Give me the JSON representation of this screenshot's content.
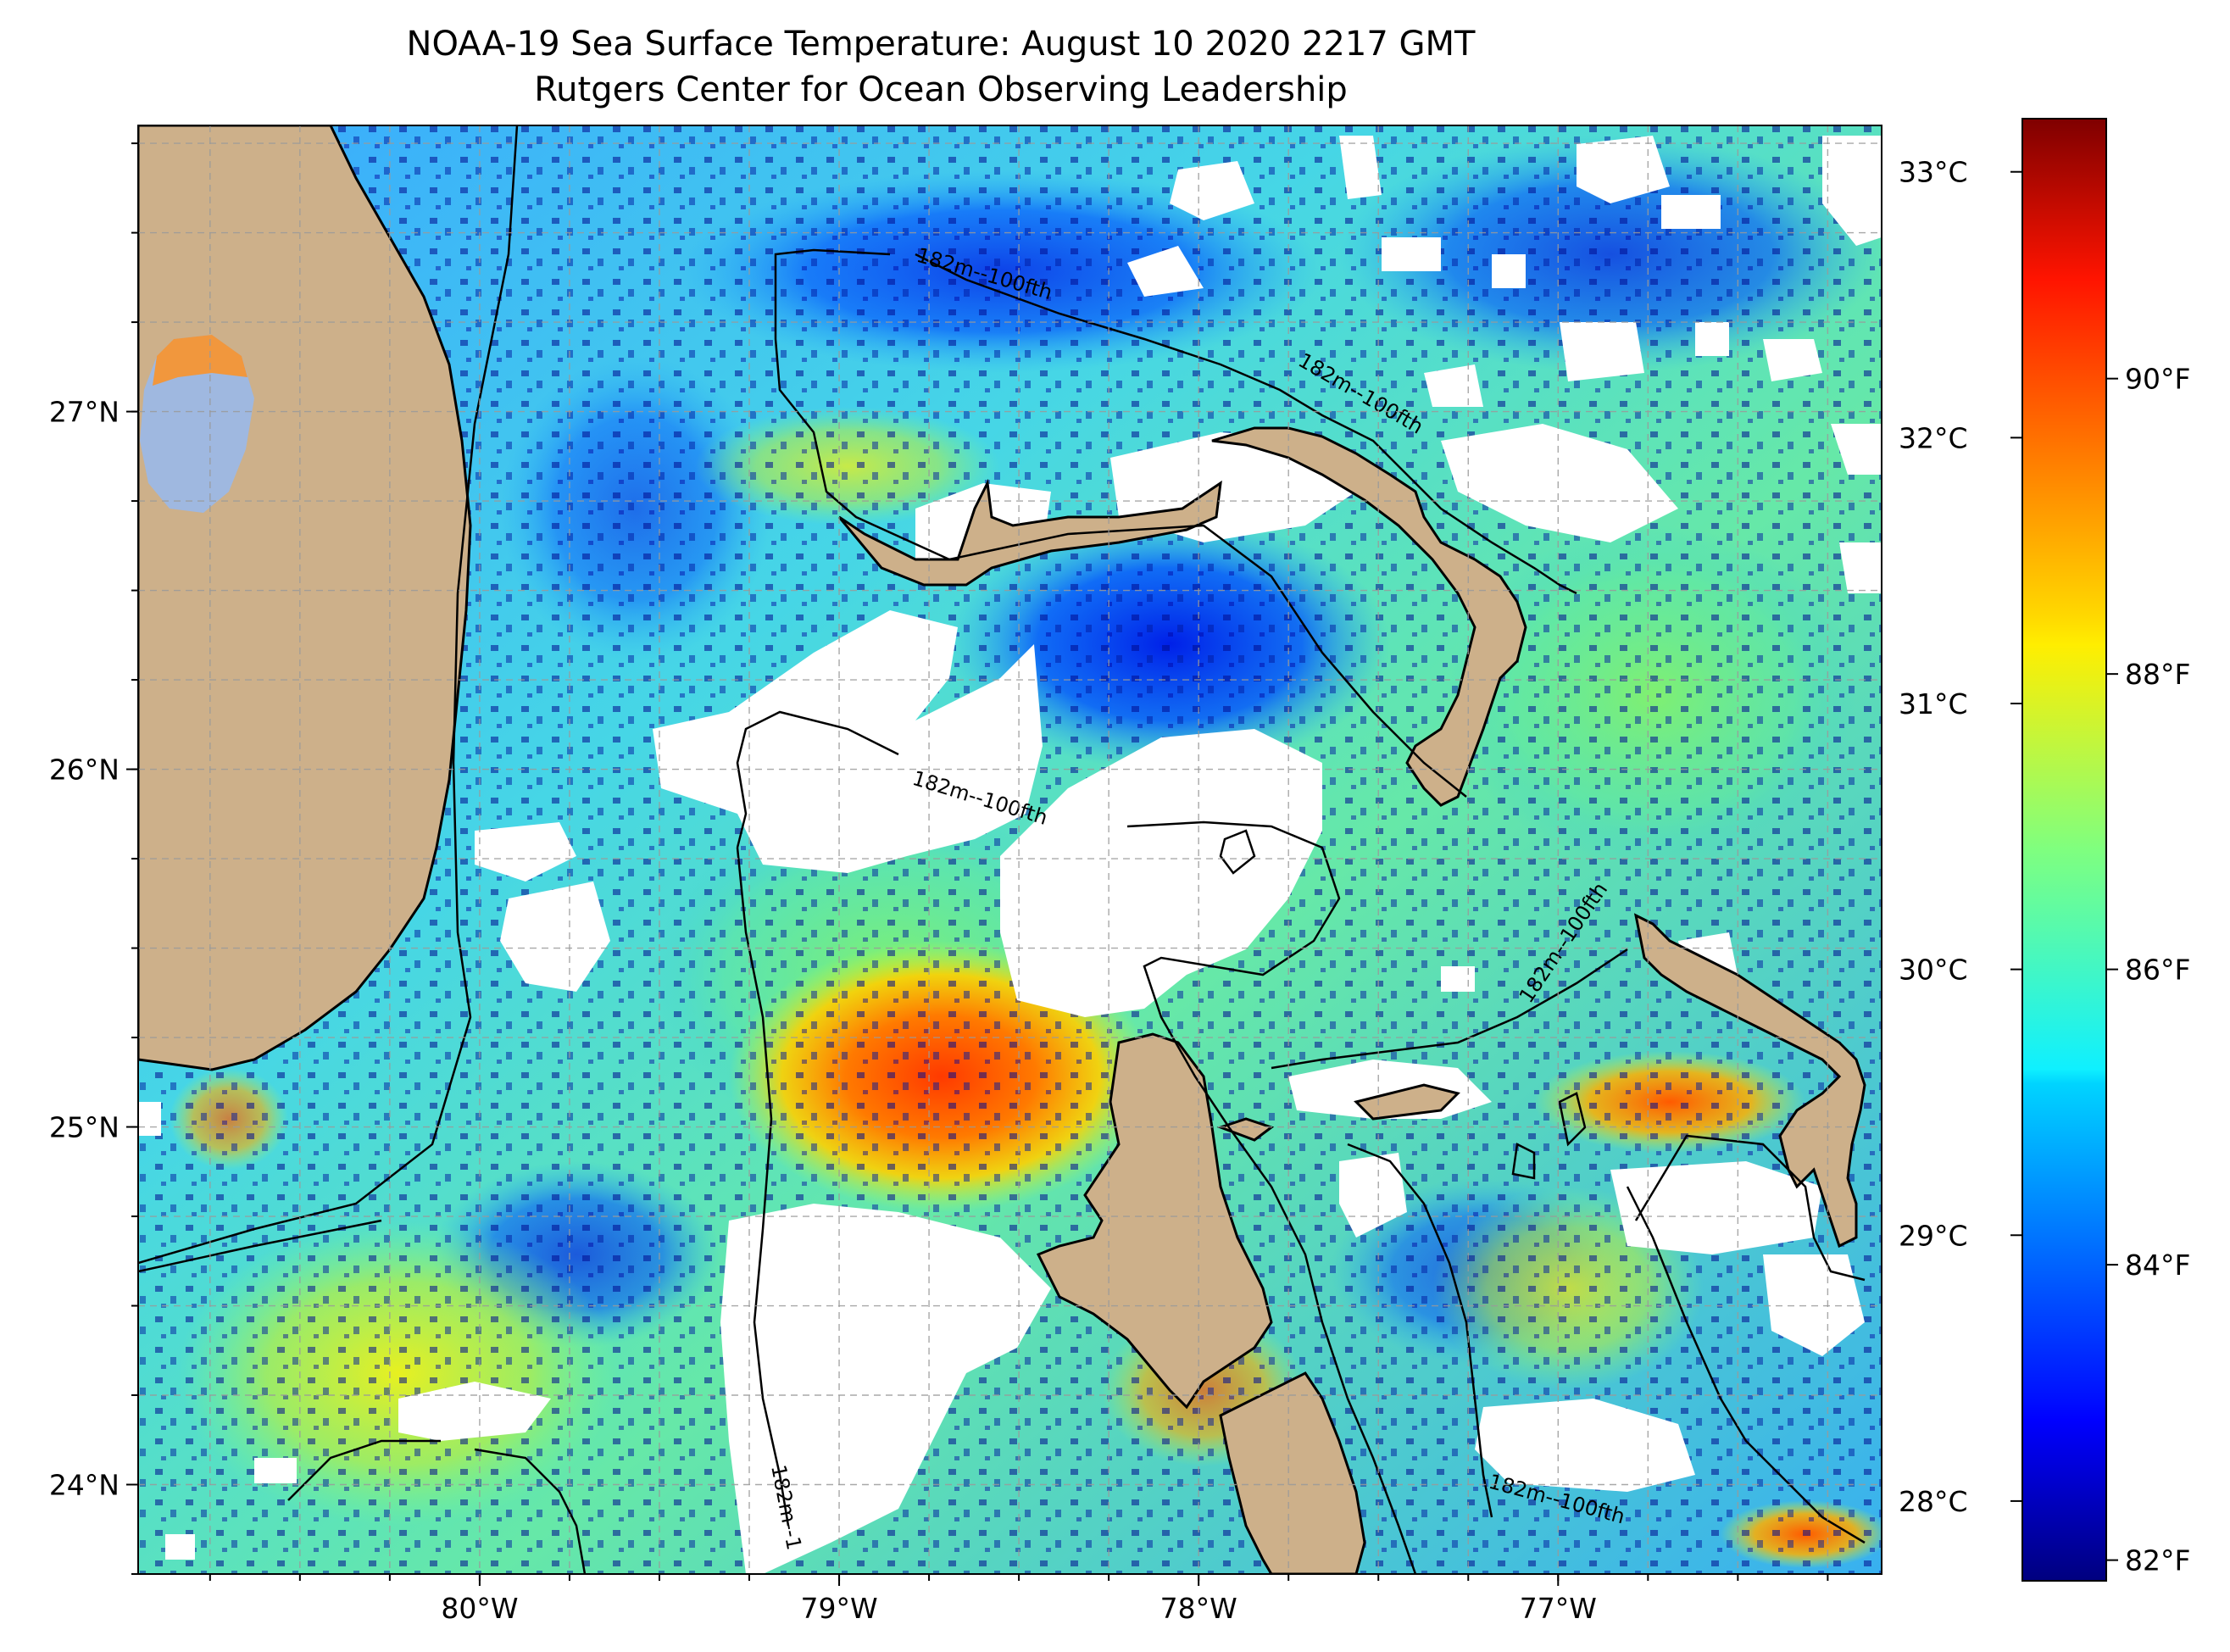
{
  "title": "NOAA-19 Sea Surface Temperature: August 10 2020 2217 GMT",
  "subtitle": "Rutgers Center for Ocean Observing Leadership",
  "map": {
    "lon_range": [
      -80.95,
      -76.1
    ],
    "lat_range": [
      23.75,
      27.8
    ],
    "lon_ticks": [
      {
        "value": -80,
        "label": "80°W"
      },
      {
        "value": -79,
        "label": "79°W"
      },
      {
        "value": -78,
        "label": "78°W"
      },
      {
        "value": -77,
        "label": "77°W"
      }
    ],
    "lat_ticks": [
      {
        "value": 24,
        "label": "24°N"
      },
      {
        "value": 25,
        "label": "25°N"
      },
      {
        "value": 26,
        "label": "26°N"
      },
      {
        "value": 27,
        "label": "27°N"
      }
    ],
    "gridlines": true,
    "contour_label": "182m--100fth",
    "contour_label_truncated": "182m--1",
    "colors": {
      "land": "#cdb08a",
      "lake": "#9fb8e0",
      "cloud": "#ffffff",
      "contour": "#000000"
    }
  },
  "colorbar": {
    "colormap": "jet",
    "celsius_range": [
      27.7,
      33.2
    ],
    "celsius_ticks": [
      {
        "value": 28,
        "label": "28°C"
      },
      {
        "value": 29,
        "label": "29°C"
      },
      {
        "value": 30,
        "label": "30°C"
      },
      {
        "value": 31,
        "label": "31°C"
      },
      {
        "value": 32,
        "label": "32°C"
      },
      {
        "value": 33,
        "label": "33°C"
      }
    ],
    "fahrenheit_ticks": [
      {
        "value": 82,
        "label": "82°F"
      },
      {
        "value": 84,
        "label": "84°F"
      },
      {
        "value": 86,
        "label": "86°F"
      },
      {
        "value": 88,
        "label": "88°F"
      },
      {
        "value": 90,
        "label": "90°F"
      }
    ]
  }
}
